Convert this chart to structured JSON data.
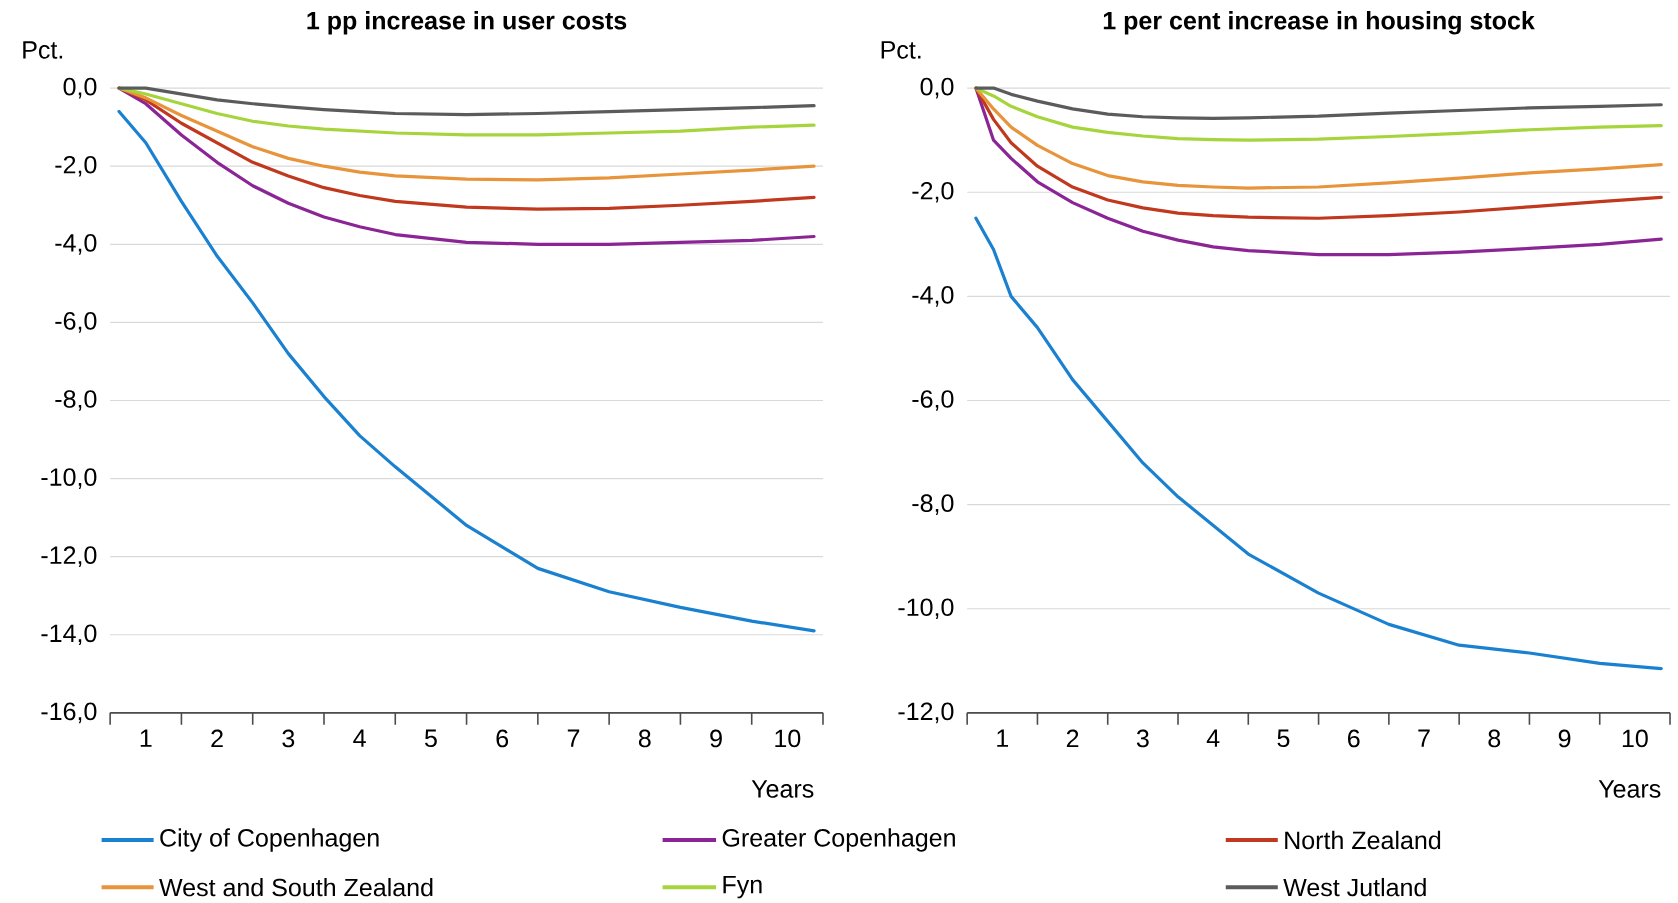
{
  "chart_data": [
    {
      "type": "line",
      "title": "1 pp increase in user costs",
      "ylabel": "Pct.",
      "xlabel": "Years",
      "grid": "y",
      "legend": "bottom",
      "x": [
        0.125,
        0.5,
        1,
        1.5,
        2,
        2.5,
        3,
        3.5,
        4,
        5,
        6,
        7,
        8,
        9,
        9.875
      ],
      "xlim": [
        0,
        10
      ],
      "xticks": [
        {
          "value": 0,
          "label": null
        },
        {
          "value": 1,
          "label": null
        },
        {
          "value": 2,
          "label": null
        },
        {
          "value": 3,
          "label": null
        },
        {
          "value": 4,
          "label": null
        },
        {
          "value": 5,
          "label": null
        },
        {
          "value": 6,
          "label": null
        },
        {
          "value": 7,
          "label": null
        },
        {
          "value": 8,
          "label": null
        },
        {
          "value": 9,
          "label": null
        },
        {
          "value": 10,
          "label": null
        },
        {
          "value": 0.5,
          "label": "1"
        },
        {
          "value": 1.5,
          "label": "2"
        },
        {
          "value": 2.5,
          "label": "3"
        },
        {
          "value": 3.5,
          "label": "4"
        },
        {
          "value": 4.5,
          "label": "5"
        },
        {
          "value": 5.5,
          "label": "6"
        },
        {
          "value": 6.5,
          "label": "7"
        },
        {
          "value": 7.5,
          "label": "8"
        },
        {
          "value": 8.5,
          "label": "9"
        },
        {
          "value": 9.5,
          "label": "10"
        }
      ],
      "ylim": [
        -16,
        0
      ],
      "yticks": [
        {
          "value": 0,
          "label": "0,0"
        },
        {
          "value": -2,
          "label": "-2,0"
        },
        {
          "value": -4,
          "label": "-4,0"
        },
        {
          "value": -6,
          "label": "-6,0"
        },
        {
          "value": -8,
          "label": "-8,0"
        },
        {
          "value": -10,
          "label": "-10,0"
        },
        {
          "value": -12,
          "label": "-12,0"
        },
        {
          "value": -14,
          "label": "-14,0"
        },
        {
          "value": -16,
          "label": "-16,0"
        }
      ],
      "series": [
        {
          "name": "City of Copenhagen",
          "color": "#1a80d0",
          "values": [
            -0.6,
            -1.4,
            -2.9,
            -4.3,
            -5.5,
            -6.8,
            -7.9,
            -8.9,
            -9.7,
            -11.2,
            -12.3,
            -12.9,
            -13.3,
            -13.65,
            -13.9
          ]
        },
        {
          "name": "Greater Copenhagen",
          "color": "#8b2596",
          "values": [
            0,
            -0.4,
            -1.2,
            -1.9,
            -2.5,
            -2.95,
            -3.3,
            -3.55,
            -3.75,
            -3.95,
            -4.0,
            -4.0,
            -3.95,
            -3.9,
            -3.8
          ]
        },
        {
          "name": "North Zealand",
          "color": "#c0381e",
          "values": [
            0,
            -0.3,
            -0.9,
            -1.4,
            -1.9,
            -2.25,
            -2.55,
            -2.75,
            -2.9,
            -3.05,
            -3.1,
            -3.08,
            -3.0,
            -2.9,
            -2.8
          ]
        },
        {
          "name": "West and South Zealand",
          "color": "#e8943a",
          "values": [
            0,
            -0.25,
            -0.7,
            -1.1,
            -1.5,
            -1.8,
            -2.0,
            -2.15,
            -2.25,
            -2.33,
            -2.35,
            -2.3,
            -2.2,
            -2.1,
            -2.0
          ]
        },
        {
          "name": "Fyn",
          "color": "#a6d43c",
          "values": [
            0,
            -0.15,
            -0.4,
            -0.65,
            -0.85,
            -0.97,
            -1.05,
            -1.1,
            -1.15,
            -1.2,
            -1.2,
            -1.15,
            -1.1,
            -1.0,
            -0.95
          ]
        },
        {
          "name": "West Jutland",
          "color": "#5b5b5b",
          "values": [
            0,
            0,
            -0.15,
            -0.3,
            -0.4,
            -0.48,
            -0.55,
            -0.6,
            -0.65,
            -0.68,
            -0.65,
            -0.6,
            -0.55,
            -0.5,
            -0.45
          ]
        }
      ]
    },
    {
      "type": "line",
      "title": "1 per cent increase in housing stock",
      "ylabel": "Pct.",
      "xlabel": "Years",
      "grid": "y",
      "x": [
        0.125,
        0.375,
        0.625,
        1,
        1.5,
        2,
        2.5,
        3,
        3.5,
        4,
        5,
        6,
        7,
        8,
        9,
        9.875
      ],
      "xlim": [
        0,
        10
      ],
      "xticks": [
        {
          "value": 0,
          "label": null
        },
        {
          "value": 1,
          "label": null
        },
        {
          "value": 2,
          "label": null
        },
        {
          "value": 3,
          "label": null
        },
        {
          "value": 4,
          "label": null
        },
        {
          "value": 5,
          "label": null
        },
        {
          "value": 6,
          "label": null
        },
        {
          "value": 7,
          "label": null
        },
        {
          "value": 8,
          "label": null
        },
        {
          "value": 9,
          "label": null
        },
        {
          "value": 10,
          "label": null
        },
        {
          "value": 0.5,
          "label": "1"
        },
        {
          "value": 1.5,
          "label": "2"
        },
        {
          "value": 2.5,
          "label": "3"
        },
        {
          "value": 3.5,
          "label": "4"
        },
        {
          "value": 4.5,
          "label": "5"
        },
        {
          "value": 5.5,
          "label": "6"
        },
        {
          "value": 6.5,
          "label": "7"
        },
        {
          "value": 7.5,
          "label": "8"
        },
        {
          "value": 8.5,
          "label": "9"
        },
        {
          "value": 9.5,
          "label": "10"
        }
      ],
      "ylim": [
        -12,
        0
      ],
      "yticks": [
        {
          "value": 0,
          "label": "0,0"
        },
        {
          "value": -2,
          "label": "-2,0"
        },
        {
          "value": -4,
          "label": "-4,0"
        },
        {
          "value": -6,
          "label": "-6,0"
        },
        {
          "value": -8,
          "label": "-8,0"
        },
        {
          "value": -10,
          "label": "-10,0"
        },
        {
          "value": -12,
          "label": "-12,0"
        }
      ],
      "series": [
        {
          "color": "#1a80d0",
          "values": [
            -2.5,
            -3.1,
            -4.0,
            -4.6,
            -5.6,
            -6.4,
            -7.2,
            -7.85,
            -8.4,
            -8.95,
            -9.7,
            -10.3,
            -10.7,
            -10.85,
            -11.05,
            -11.15
          ]
        },
        {
          "color": "#8b2596",
          "values": [
            0,
            -1.0,
            -1.35,
            -1.8,
            -2.2,
            -2.5,
            -2.75,
            -2.92,
            -3.05,
            -3.12,
            -3.2,
            -3.2,
            -3.15,
            -3.08,
            -3.0,
            -2.9
          ]
        },
        {
          "color": "#c0381e",
          "values": [
            0,
            -0.6,
            -1.05,
            -1.5,
            -1.9,
            -2.15,
            -2.3,
            -2.4,
            -2.45,
            -2.48,
            -2.5,
            -2.45,
            -2.38,
            -2.28,
            -2.18,
            -2.1
          ]
        },
        {
          "color": "#e8943a",
          "values": [
            0,
            -0.4,
            -0.75,
            -1.1,
            -1.45,
            -1.68,
            -1.8,
            -1.87,
            -1.9,
            -1.92,
            -1.9,
            -1.82,
            -1.73,
            -1.63,
            -1.55,
            -1.47
          ]
        },
        {
          "color": "#a6d43c",
          "values": [
            0,
            -0.15,
            -0.35,
            -0.55,
            -0.75,
            -0.85,
            -0.92,
            -0.97,
            -0.99,
            -1.0,
            -0.98,
            -0.93,
            -0.87,
            -0.8,
            -0.75,
            -0.72
          ]
        },
        {
          "color": "#5b5b5b",
          "values": [
            0,
            0,
            -0.12,
            -0.25,
            -0.4,
            -0.5,
            -0.55,
            -0.57,
            -0.58,
            -0.57,
            -0.54,
            -0.48,
            -0.43,
            -0.38,
            -0.35,
            -0.32
          ]
        }
      ]
    }
  ]
}
